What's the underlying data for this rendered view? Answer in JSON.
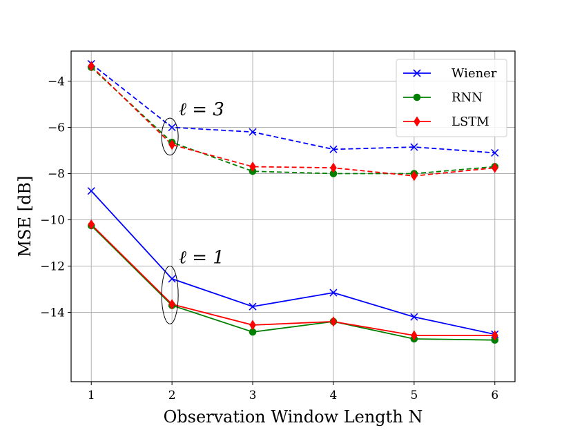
{
  "chart_data": {
    "type": "line",
    "title": "",
    "xlabel": "Observation Window Length N",
    "ylabel": "MSE [dB]",
    "x": [
      1,
      2,
      3,
      4,
      5,
      6
    ],
    "xlim": [
      0.75,
      6.25
    ],
    "ylim": [
      -17.0,
      -2.7
    ],
    "xticks": [
      1,
      2,
      3,
      4,
      5,
      6
    ],
    "yticks": [
      -14,
      -12,
      -10,
      -8,
      -6,
      -4
    ],
    "ytick_labels": [
      "−14",
      "−12",
      "−10",
      "−8",
      "−6",
      "−4"
    ],
    "grid": true,
    "legend_position": "top-right",
    "colors": {
      "Wiener": "#0000ff",
      "RNN": "#008000",
      "LSTM": "#ff0000"
    },
    "series": [
      {
        "name": "Wiener",
        "group": "l=3",
        "linestyle": "dashed",
        "marker": "x",
        "values": [
          -3.25,
          -6.0,
          -6.2,
          -6.95,
          -6.85,
          -7.1
        ]
      },
      {
        "name": "RNN",
        "group": "l=3",
        "linestyle": "dashed",
        "marker": "circle",
        "values": [
          -3.4,
          -6.65,
          -7.9,
          -8.0,
          -8.0,
          -7.7
        ]
      },
      {
        "name": "LSTM",
        "group": "l=3",
        "linestyle": "dashed",
        "marker": "diamond",
        "values": [
          -3.35,
          -6.75,
          -7.7,
          -7.75,
          -8.1,
          -7.75
        ]
      },
      {
        "name": "Wiener",
        "group": "l=1",
        "linestyle": "solid",
        "marker": "x",
        "values": [
          -8.75,
          -12.55,
          -13.75,
          -13.15,
          -14.2,
          -14.95
        ]
      },
      {
        "name": "RNN",
        "group": "l=1",
        "linestyle": "solid",
        "marker": "circle",
        "values": [
          -10.25,
          -13.7,
          -14.85,
          -14.4,
          -15.15,
          -15.2
        ]
      },
      {
        "name": "LSTM",
        "group": "l=1",
        "linestyle": "solid",
        "marker": "diamond",
        "values": [
          -10.2,
          -13.65,
          -14.55,
          -14.4,
          -15.0,
          -15.0
        ]
      }
    ],
    "legend": [
      "Wiener",
      "RNN",
      "LSTM"
    ],
    "annotations": [
      {
        "text": "ℓ = 3",
        "group": "l=3",
        "at_x": 2,
        "at_y_range": [
          -7.2,
          -5.6
        ]
      },
      {
        "text": "ℓ = 1",
        "group": "l=1",
        "at_x": 2,
        "at_y_range": [
          -14.5,
          -12.0
        ]
      }
    ]
  }
}
